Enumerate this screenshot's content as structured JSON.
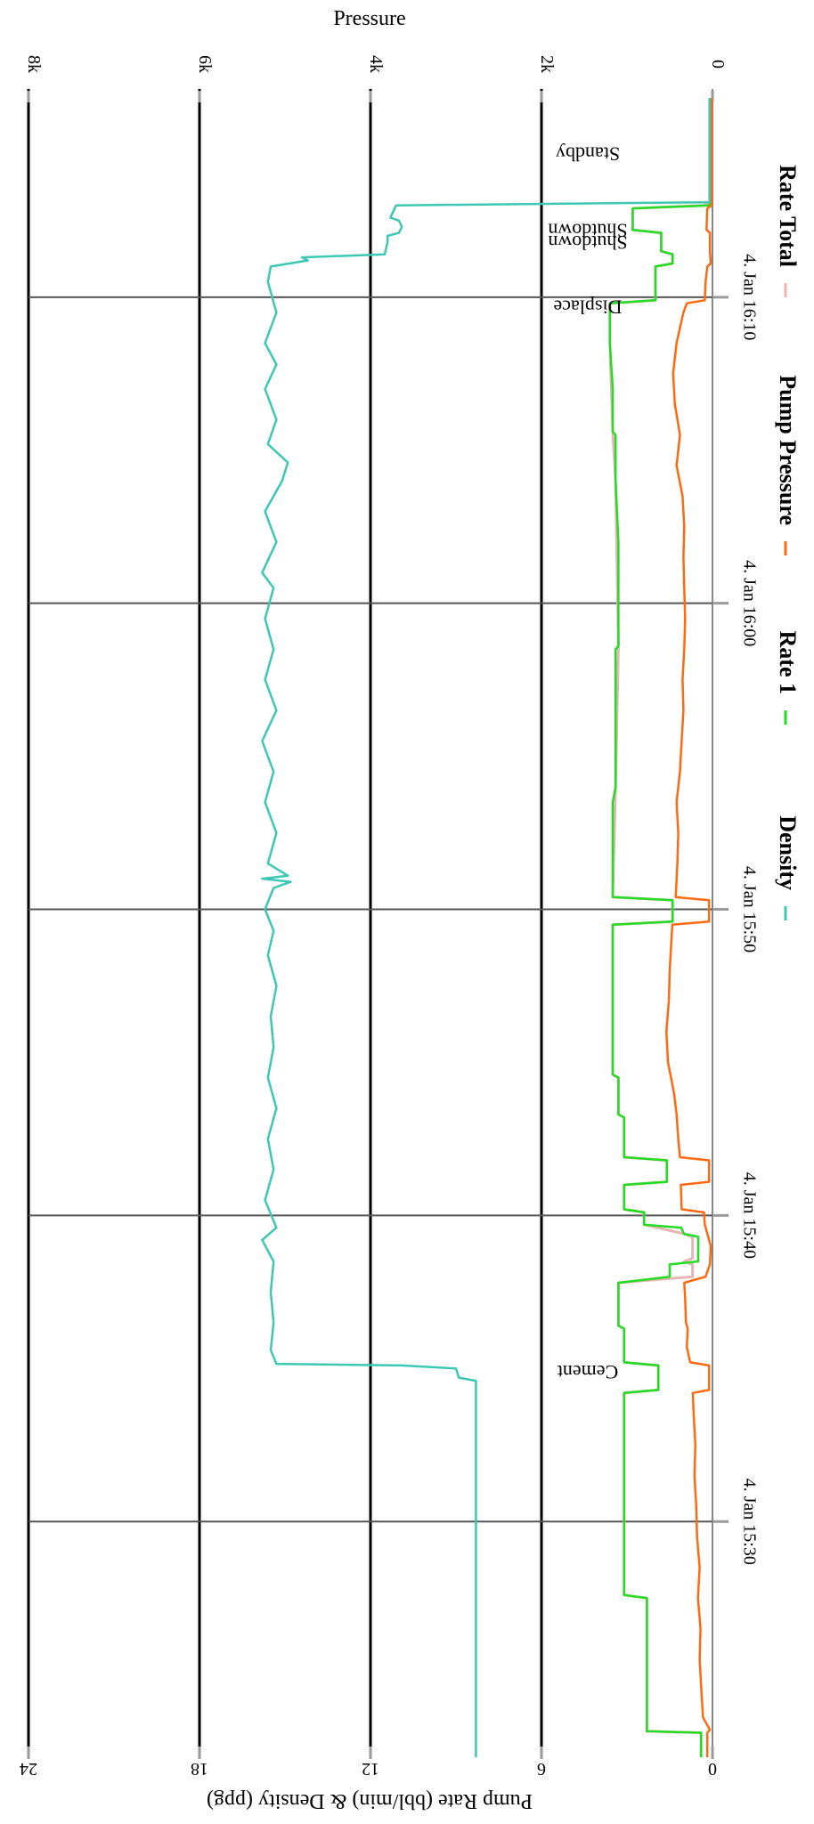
{
  "chart_data": {
    "type": "line",
    "orientation": "rotated-90",
    "x_axis": {
      "label": "",
      "ticks": [
        "4. Jan 15:30",
        "4. Jan 15:40",
        "4. Jan 15:50",
        "4. Jan 16:00",
        "4. Jan 16:10"
      ],
      "tick_minutes": [
        30,
        40,
        50,
        60,
        70
      ],
      "range_minutes": [
        22.3,
        76.8
      ]
    },
    "left_axis": {
      "label": "Pump Rate (bbl/min) & Density (ppg)",
      "ticks": [
        "0",
        "6",
        "12",
        "18",
        "24"
      ],
      "tick_values": [
        0,
        6,
        12,
        18,
        24
      ],
      "range": [
        0,
        24
      ]
    },
    "right_axis": {
      "label": "Pressure",
      "ticks": [
        "0",
        "2k",
        "4k",
        "6k",
        "8k"
      ],
      "tick_values": [
        0,
        2000,
        4000,
        6000,
        8000
      ],
      "range": [
        0,
        8000
      ]
    },
    "annotations": [
      {
        "text": "Cement",
        "x": 35.1
      },
      {
        "text": "Displace",
        "x": 69.9
      },
      {
        "text": "Shutdown",
        "x": 72.0
      },
      {
        "text": "Shutdown",
        "x": 72.4
      },
      {
        "text": "Standby",
        "x": 74.9
      }
    ],
    "legend": {
      "placement": "bottom"
    },
    "series": [
      {
        "name": "Density",
        "color": "#3cc8b4",
        "axis": "left",
        "points": [
          [
            22.3,
            8.3
          ],
          [
            34.6,
            8.3
          ],
          [
            34.7,
            8.9
          ],
          [
            35.0,
            9.0
          ],
          [
            35.1,
            10.9
          ],
          [
            35.15,
            15.3
          ],
          [
            35.6,
            15.5
          ],
          [
            36.5,
            15.4
          ],
          [
            37.5,
            15.5
          ],
          [
            38.5,
            15.4
          ],
          [
            39.2,
            15.8
          ],
          [
            39.6,
            15.3
          ],
          [
            40.5,
            15.7
          ],
          [
            41.5,
            15.4
          ],
          [
            42.5,
            15.6
          ],
          [
            43.5,
            15.3
          ],
          [
            44.5,
            15.6
          ],
          [
            45.5,
            15.4
          ],
          [
            46.5,
            15.5
          ],
          [
            47.5,
            15.3
          ],
          [
            48.5,
            15.6
          ],
          [
            49.3,
            15.4
          ],
          [
            50.0,
            15.7
          ],
          [
            50.7,
            15.4
          ],
          [
            50.9,
            14.8
          ],
          [
            51.0,
            15.8
          ],
          [
            51.1,
            14.9
          ],
          [
            51.5,
            15.6
          ],
          [
            52.5,
            15.3
          ],
          [
            53.5,
            15.7
          ],
          [
            54.5,
            15.4
          ],
          [
            55.5,
            15.8
          ],
          [
            56.5,
            15.3
          ],
          [
            57.5,
            15.7
          ],
          [
            58.5,
            15.4
          ],
          [
            59.5,
            15.7
          ],
          [
            60.5,
            15.4
          ],
          [
            61.0,
            15.8
          ],
          [
            62.0,
            15.3
          ],
          [
            63.0,
            15.7
          ],
          [
            64.0,
            15.1
          ],
          [
            64.6,
            14.9
          ],
          [
            65.2,
            15.6
          ],
          [
            66.0,
            15.3
          ],
          [
            67.0,
            15.7
          ],
          [
            67.8,
            15.3
          ],
          [
            68.5,
            15.7
          ],
          [
            69.5,
            15.3
          ],
          [
            70.5,
            15.6
          ],
          [
            71.0,
            15.5
          ],
          [
            71.2,
            14.2
          ],
          [
            71.3,
            14.4
          ],
          [
            71.4,
            11.5
          ],
          [
            71.8,
            11.4
          ],
          [
            72.0,
            11.4
          ],
          [
            72.1,
            11.0
          ],
          [
            72.3,
            10.9
          ],
          [
            72.5,
            11.0
          ],
          [
            72.6,
            11.3
          ],
          [
            73.0,
            11.1
          ],
          [
            73.1,
            0.1
          ],
          [
            76.5,
            0.1
          ]
        ]
      },
      {
        "name": "Rate 1",
        "color": "#22dd22",
        "axis": "left",
        "points": [
          [
            22.3,
            0.4
          ],
          [
            23.1,
            0.4
          ],
          [
            23.15,
            2.3
          ],
          [
            23.5,
            2.3
          ],
          [
            27.5,
            2.3
          ],
          [
            27.6,
            3.1
          ],
          [
            30.0,
            3.1
          ],
          [
            34.0,
            3.1
          ],
          [
            34.2,
            3.1
          ],
          [
            34.3,
            1.9
          ],
          [
            35.1,
            1.9
          ],
          [
            35.2,
            3.1
          ],
          [
            36.3,
            3.1
          ],
          [
            36.4,
            3.3
          ],
          [
            37.8,
            3.3
          ],
          [
            38.0,
            1.5
          ],
          [
            38.4,
            1.5
          ],
          [
            38.5,
            0.5
          ],
          [
            39.3,
            0.5
          ],
          [
            39.4,
            1.0
          ],
          [
            39.6,
            1.1
          ],
          [
            39.7,
            2.4
          ],
          [
            40.1,
            2.4
          ],
          [
            40.2,
            3.1
          ],
          [
            41.0,
            3.1
          ],
          [
            41.1,
            1.6
          ],
          [
            41.8,
            1.6
          ],
          [
            41.9,
            3.1
          ],
          [
            43.2,
            3.1
          ],
          [
            43.3,
            3.3
          ],
          [
            44.5,
            3.3
          ],
          [
            44.6,
            3.5
          ],
          [
            47.0,
            3.5
          ],
          [
            48.0,
            3.5
          ],
          [
            49.5,
            3.5
          ],
          [
            49.6,
            1.4
          ],
          [
            50.3,
            1.4
          ],
          [
            50.4,
            3.5
          ],
          [
            53.5,
            3.5
          ],
          [
            54.0,
            3.4
          ],
          [
            58.5,
            3.4
          ],
          [
            58.6,
            3.3
          ],
          [
            62.0,
            3.3
          ],
          [
            64.0,
            3.4
          ],
          [
            65.5,
            3.4
          ],
          [
            65.6,
            3.5
          ],
          [
            67.0,
            3.5
          ],
          [
            68.5,
            3.6
          ],
          [
            69.8,
            3.6
          ],
          [
            69.9,
            2.0
          ],
          [
            71.0,
            2.0
          ],
          [
            71.1,
            1.4
          ],
          [
            71.4,
            1.4
          ],
          [
            71.5,
            1.8
          ],
          [
            72.1,
            1.8
          ],
          [
            72.2,
            2.8
          ],
          [
            72.9,
            2.8
          ],
          [
            73.0,
            0.1
          ],
          [
            76.5,
            0.1
          ]
        ]
      },
      {
        "name": "Pump Pressure",
        "color": "#ff6a10",
        "axis": "right",
        "points": [
          [
            22.3,
            60
          ],
          [
            23.1,
            60
          ],
          [
            23.2,
            30
          ],
          [
            23.6,
            110
          ],
          [
            24.5,
            130
          ],
          [
            25.5,
            150
          ],
          [
            26.5,
            140
          ],
          [
            27.5,
            170
          ],
          [
            28.5,
            150
          ],
          [
            29.5,
            180
          ],
          [
            30.5,
            190
          ],
          [
            31.5,
            210
          ],
          [
            32.5,
            200
          ],
          [
            33.5,
            220
          ],
          [
            34.2,
            230
          ],
          [
            34.3,
            40
          ],
          [
            35.1,
            40
          ],
          [
            35.2,
            260
          ],
          [
            35.7,
            300
          ],
          [
            36.3,
            290
          ],
          [
            36.5,
            310
          ],
          [
            37.3,
            320
          ],
          [
            37.8,
            330
          ],
          [
            38.0,
            80
          ],
          [
            38.4,
            30
          ],
          [
            39.0,
            20
          ],
          [
            39.7,
            90
          ],
          [
            40.1,
            100
          ],
          [
            40.2,
            360
          ],
          [
            41.0,
            370
          ],
          [
            41.1,
            40
          ],
          [
            41.8,
            40
          ],
          [
            41.9,
            380
          ],
          [
            42.5,
            400
          ],
          [
            43.3,
            420
          ],
          [
            44.0,
            450
          ],
          [
            45.0,
            520
          ],
          [
            46.0,
            540
          ],
          [
            47.0,
            510
          ],
          [
            48.0,
            500
          ],
          [
            49.0,
            480
          ],
          [
            49.5,
            470
          ],
          [
            49.6,
            40
          ],
          [
            50.3,
            40
          ],
          [
            50.4,
            430
          ],
          [
            51.5,
            410
          ],
          [
            52.5,
            400
          ],
          [
            53.5,
            420
          ],
          [
            54.5,
            380
          ],
          [
            55.5,
            360
          ],
          [
            56.5,
            340
          ],
          [
            57.5,
            350
          ],
          [
            58.5,
            330
          ],
          [
            59.5,
            320
          ],
          [
            60.5,
            330
          ],
          [
            61.5,
            340
          ],
          [
            62.5,
            330
          ],
          [
            63.5,
            350
          ],
          [
            64.5,
            420
          ],
          [
            65.5,
            380
          ],
          [
            66.5,
            440
          ],
          [
            67.5,
            460
          ],
          [
            68.5,
            420
          ],
          [
            69.5,
            340
          ],
          [
            69.8,
            300
          ],
          [
            69.9,
            90
          ],
          [
            70.5,
            80
          ],
          [
            71.0,
            60
          ],
          [
            71.1,
            20
          ],
          [
            71.5,
            30
          ],
          [
            72.1,
            30
          ],
          [
            72.2,
            70
          ],
          [
            72.9,
            60
          ],
          [
            73.0,
            10
          ],
          [
            76.5,
            10
          ]
        ]
      },
      {
        "name": "Rate Total",
        "color": "#e8b4b4",
        "axis": "left",
        "points": [
          [
            22.3,
            0.4
          ],
          [
            23.1,
            0.4
          ],
          [
            23.15,
            2.3
          ],
          [
            23.5,
            2.3
          ],
          [
            27.5,
            2.3
          ],
          [
            27.6,
            3.1
          ],
          [
            34.2,
            3.1
          ],
          [
            34.3,
            1.9
          ],
          [
            35.1,
            1.9
          ],
          [
            35.2,
            3.1
          ],
          [
            36.3,
            3.1
          ],
          [
            36.4,
            3.3
          ],
          [
            37.8,
            3.3
          ],
          [
            38.0,
            0.7
          ],
          [
            38.4,
            0.7
          ],
          [
            38.5,
            1.0
          ],
          [
            38.6,
            0.7
          ],
          [
            39.3,
            0.7
          ],
          [
            39.4,
            1.0
          ],
          [
            39.7,
            2.4
          ],
          [
            40.1,
            2.4
          ],
          [
            40.2,
            3.1
          ],
          [
            41.0,
            3.1
          ],
          [
            41.1,
            1.6
          ],
          [
            41.8,
            1.6
          ],
          [
            41.9,
            3.1
          ],
          [
            43.2,
            3.1
          ],
          [
            43.3,
            3.3
          ],
          [
            44.5,
            3.3
          ],
          [
            44.6,
            3.5
          ],
          [
            49.5,
            3.5
          ],
          [
            49.6,
            1.4
          ],
          [
            50.3,
            1.4
          ],
          [
            50.4,
            3.5
          ],
          [
            54.0,
            3.4
          ],
          [
            58.6,
            3.3
          ],
          [
            64.0,
            3.4
          ],
          [
            65.6,
            3.5
          ],
          [
            68.5,
            3.6
          ],
          [
            69.8,
            3.6
          ],
          [
            69.9,
            2.0
          ],
          [
            71.0,
            2.0
          ],
          [
            71.1,
            1.4
          ],
          [
            71.4,
            1.4
          ],
          [
            71.5,
            1.8
          ],
          [
            72.1,
            1.8
          ],
          [
            72.2,
            2.8
          ],
          [
            72.9,
            2.8
          ],
          [
            73.0,
            0.3
          ],
          [
            73.1,
            0.1
          ],
          [
            76.5,
            0.1
          ]
        ]
      }
    ]
  }
}
